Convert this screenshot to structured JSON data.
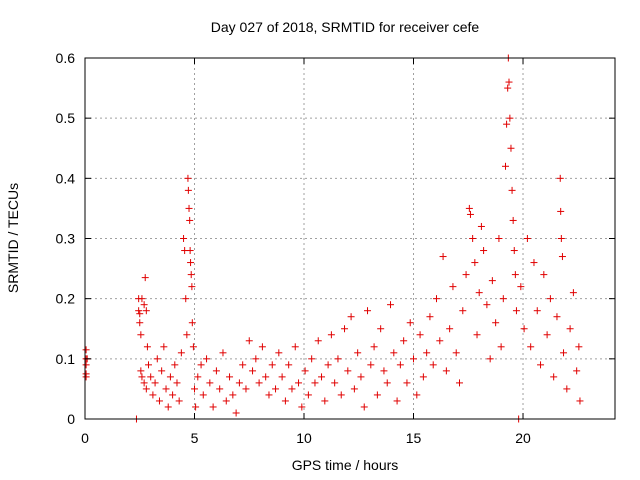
{
  "chart_data": {
    "type": "scatter",
    "title": "Day 027 of 2018, SRMTID for receiver cefe",
    "xlabel": "GPS time / hours",
    "ylabel": "SRMTID / TECUs",
    "xlim": [
      0,
      24.2
    ],
    "ylim": [
      0,
      0.6
    ],
    "xticks": [
      0,
      5,
      10,
      15,
      20
    ],
    "yticks": [
      0,
      0.1,
      0.2,
      0.3,
      0.4,
      0.5,
      0.6
    ],
    "xtick_labels": [
      "0",
      "5",
      "10",
      "15",
      "20"
    ],
    "ytick_labels": [
      "0",
      "0.1",
      "0.2",
      "0.3",
      "0.4",
      "0.5",
      "0.6"
    ],
    "grid": true,
    "marker": "+",
    "color": "#e00000",
    "series": [
      {
        "name": "SRMTID",
        "points": [
          [
            0.05,
            0.115
          ],
          [
            0.05,
            0.1
          ],
          [
            0.05,
            0.09
          ],
          [
            0.05,
            0.075
          ],
          [
            0.05,
            0.07
          ],
          [
            0.1,
            0.1
          ],
          [
            2.35,
            0.0
          ],
          [
            2.45,
            0.2
          ],
          [
            2.45,
            0.18
          ],
          [
            2.5,
            0.175
          ],
          [
            2.5,
            0.16
          ],
          [
            2.55,
            0.14
          ],
          [
            2.6,
            0.2
          ],
          [
            2.7,
            0.19
          ],
          [
            2.75,
            0.235
          ],
          [
            2.8,
            0.18
          ],
          [
            2.85,
            0.12
          ],
          [
            2.55,
            0.08
          ],
          [
            2.6,
            0.07
          ],
          [
            2.7,
            0.06
          ],
          [
            2.8,
            0.05
          ],
          [
            2.9,
            0.09
          ],
          [
            3.0,
            0.07
          ],
          [
            3.1,
            0.04
          ],
          [
            3.2,
            0.06
          ],
          [
            3.3,
            0.1
          ],
          [
            3.4,
            0.03
          ],
          [
            3.5,
            0.08
          ],
          [
            3.6,
            0.12
          ],
          [
            3.7,
            0.05
          ],
          [
            3.8,
            0.02
          ],
          [
            3.9,
            0.07
          ],
          [
            4.0,
            0.04
          ],
          [
            4.1,
            0.09
          ],
          [
            4.2,
            0.06
          ],
          [
            4.3,
            0.03
          ],
          [
            4.4,
            0.11
          ],
          [
            4.5,
            0.3
          ],
          [
            4.55,
            0.28
          ],
          [
            4.6,
            0.2
          ],
          [
            4.65,
            0.14
          ],
          [
            4.7,
            0.4
          ],
          [
            4.72,
            0.38
          ],
          [
            4.75,
            0.35
          ],
          [
            4.78,
            0.33
          ],
          [
            4.8,
            0.28
          ],
          [
            4.82,
            0.26
          ],
          [
            4.85,
            0.24
          ],
          [
            4.88,
            0.22
          ],
          [
            4.9,
            0.16
          ],
          [
            4.95,
            0.12
          ],
          [
            5.0,
            0.05
          ],
          [
            5.05,
            0.02
          ],
          [
            5.15,
            0.07
          ],
          [
            5.3,
            0.09
          ],
          [
            5.4,
            0.04
          ],
          [
            5.55,
            0.1
          ],
          [
            5.7,
            0.06
          ],
          [
            5.85,
            0.02
          ],
          [
            6.0,
            0.08
          ],
          [
            6.15,
            0.05
          ],
          [
            6.3,
            0.11
          ],
          [
            6.45,
            0.03
          ],
          [
            6.6,
            0.07
          ],
          [
            6.75,
            0.04
          ],
          [
            6.9,
            0.01
          ],
          [
            7.05,
            0.06
          ],
          [
            7.2,
            0.09
          ],
          [
            7.35,
            0.05
          ],
          [
            7.5,
            0.13
          ],
          [
            7.65,
            0.08
          ],
          [
            7.8,
            0.1
          ],
          [
            7.95,
            0.06
          ],
          [
            8.1,
            0.12
          ],
          [
            8.25,
            0.07
          ],
          [
            8.4,
            0.04
          ],
          [
            8.55,
            0.09
          ],
          [
            8.7,
            0.05
          ],
          [
            8.85,
            0.11
          ],
          [
            9.0,
            0.07
          ],
          [
            9.15,
            0.03
          ],
          [
            9.3,
            0.09
          ],
          [
            9.45,
            0.05
          ],
          [
            9.6,
            0.12
          ],
          [
            9.75,
            0.06
          ],
          [
            9.9,
            0.02
          ],
          [
            10.05,
            0.08
          ],
          [
            10.2,
            0.04
          ],
          [
            10.35,
            0.1
          ],
          [
            10.5,
            0.06
          ],
          [
            10.65,
            0.13
          ],
          [
            10.8,
            0.07
          ],
          [
            10.95,
            0.03
          ],
          [
            11.1,
            0.09
          ],
          [
            11.25,
            0.14
          ],
          [
            11.4,
            0.06
          ],
          [
            11.55,
            0.1
          ],
          [
            11.7,
            0.04
          ],
          [
            11.85,
            0.15
          ],
          [
            12.0,
            0.08
          ],
          [
            12.15,
            0.17
          ],
          [
            12.3,
            0.05
          ],
          [
            12.45,
            0.11
          ],
          [
            12.6,
            0.07
          ],
          [
            12.75,
            0.02
          ],
          [
            12.9,
            0.18
          ],
          [
            13.05,
            0.09
          ],
          [
            13.2,
            0.12
          ],
          [
            13.35,
            0.04
          ],
          [
            13.5,
            0.15
          ],
          [
            13.65,
            0.08
          ],
          [
            13.8,
            0.06
          ],
          [
            13.95,
            0.19
          ],
          [
            14.1,
            0.11
          ],
          [
            14.25,
            0.03
          ],
          [
            14.4,
            0.09
          ],
          [
            14.55,
            0.13
          ],
          [
            14.7,
            0.06
          ],
          [
            14.85,
            0.16
          ],
          [
            15.0,
            0.1
          ],
          [
            15.15,
            0.04
          ],
          [
            15.3,
            0.14
          ],
          [
            15.45,
            0.07
          ],
          [
            15.6,
            0.11
          ],
          [
            15.75,
            0.17
          ],
          [
            15.9,
            0.09
          ],
          [
            16.05,
            0.2
          ],
          [
            16.2,
            0.13
          ],
          [
            16.35,
            0.27
          ],
          [
            16.5,
            0.08
          ],
          [
            16.65,
            0.15
          ],
          [
            16.8,
            0.22
          ],
          [
            16.95,
            0.11
          ],
          [
            17.1,
            0.06
          ],
          [
            17.25,
            0.18
          ],
          [
            17.4,
            0.24
          ],
          [
            17.55,
            0.35
          ],
          [
            17.6,
            0.34
          ],
          [
            17.7,
            0.3
          ],
          [
            17.8,
            0.26
          ],
          [
            17.9,
            0.14
          ],
          [
            18.0,
            0.21
          ],
          [
            18.1,
            0.32
          ],
          [
            18.2,
            0.28
          ],
          [
            18.35,
            0.19
          ],
          [
            18.5,
            0.1
          ],
          [
            18.6,
            0.23
          ],
          [
            18.75,
            0.16
          ],
          [
            18.9,
            0.3
          ],
          [
            19.0,
            0.12
          ],
          [
            19.1,
            0.2
          ],
          [
            19.2,
            0.42
          ],
          [
            19.25,
            0.49
          ],
          [
            19.3,
            0.55
          ],
          [
            19.33,
            0.6
          ],
          [
            19.36,
            0.56
          ],
          [
            19.4,
            0.5
          ],
          [
            19.45,
            0.45
          ],
          [
            19.5,
            0.38
          ],
          [
            19.55,
            0.33
          ],
          [
            19.6,
            0.28
          ],
          [
            19.65,
            0.24
          ],
          [
            19.7,
            0.18
          ],
          [
            19.8,
            0.0
          ],
          [
            19.9,
            0.22
          ],
          [
            20.05,
            0.15
          ],
          [
            20.2,
            0.3
          ],
          [
            20.35,
            0.12
          ],
          [
            20.5,
            0.26
          ],
          [
            20.65,
            0.18
          ],
          [
            20.8,
            0.09
          ],
          [
            20.95,
            0.24
          ],
          [
            21.1,
            0.14
          ],
          [
            21.25,
            0.2
          ],
          [
            21.4,
            0.07
          ],
          [
            21.55,
            0.17
          ],
          [
            21.7,
            0.4
          ],
          [
            21.72,
            0.345
          ],
          [
            21.75,
            0.3
          ],
          [
            21.8,
            0.27
          ],
          [
            21.85,
            0.11
          ],
          [
            22.0,
            0.05
          ],
          [
            22.15,
            0.15
          ],
          [
            22.3,
            0.21
          ],
          [
            22.45,
            0.08
          ],
          [
            22.55,
            0.12
          ],
          [
            22.6,
            0.03
          ]
        ]
      }
    ]
  }
}
